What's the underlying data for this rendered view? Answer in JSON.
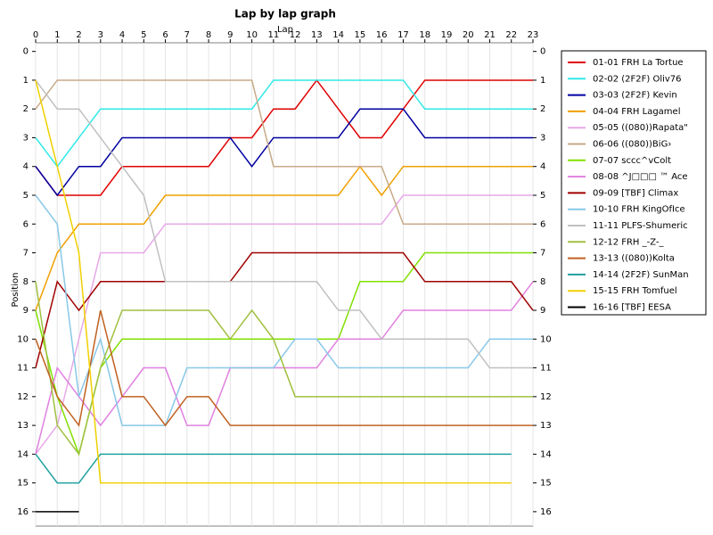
{
  "chart_data": {
    "type": "line",
    "title": "Lap by lap graph",
    "x_label": "Lap",
    "y_label": "Position",
    "x": [
      0,
      1,
      2,
      3,
      4,
      5,
      6,
      7,
      8,
      9,
      10,
      11,
      12,
      13,
      14,
      15,
      16,
      17,
      18,
      19,
      20,
      21,
      22,
      23
    ],
    "xlim": [
      0,
      23
    ],
    "xticks": [
      0,
      1,
      2,
      3,
      4,
      5,
      6,
      7,
      8,
      9,
      10,
      11,
      12,
      13,
      14,
      15,
      16,
      17,
      18,
      19,
      20,
      21,
      22,
      23
    ],
    "ylim": [
      -0.3,
      16.5
    ],
    "yticks": [
      0,
      1,
      2,
      3,
      4,
      5,
      6,
      7,
      8,
      9,
      10,
      11,
      12,
      13,
      14,
      15,
      16
    ],
    "y_inverted": true,
    "grid": true,
    "legend_position": "right",
    "series": [
      {
        "name": "01-01 FRH La Tortue",
        "color": "#e00000",
        "values": [
          4,
          5,
          5,
          5,
          4,
          4,
          4,
          4,
          4,
          3,
          3,
          2,
          2,
          1,
          2,
          3,
          3,
          2,
          1,
          1,
          1,
          1,
          1,
          1
        ]
      },
      {
        "name": "02-02 (2F2F) Oliv76",
        "color": "#30e8e8",
        "values": [
          3,
          4,
          3,
          2,
          2,
          2,
          2,
          2,
          2,
          2,
          2,
          1,
          1,
          1,
          1,
          1,
          1,
          1,
          2,
          2,
          2,
          2,
          2,
          2
        ]
      },
      {
        "name": "03-03 (2F2F) Kevin",
        "color": "#0000a0",
        "values": [
          4,
          5,
          4,
          4,
          3,
          3,
          3,
          3,
          3,
          3,
          4,
          3,
          3,
          3,
          3,
          2,
          2,
          2,
          3,
          3,
          3,
          3,
          3,
          3
        ]
      },
      {
        "name": "04-04 FRH Lagamel",
        "color": "#f0a000",
        "values": [
          9,
          7,
          6,
          6,
          6,
          6,
          5,
          5,
          5,
          5,
          5,
          5,
          5,
          5,
          5,
          4,
          5,
          4,
          4,
          4,
          4,
          4,
          4,
          4
        ]
      },
      {
        "name": "05-05 ((080))Rapata\"",
        "color": "#e8a8e8",
        "values": [
          14,
          13,
          10,
          7,
          7,
          7,
          6,
          6,
          6,
          6,
          6,
          6,
          6,
          6,
          6,
          6,
          6,
          5,
          5,
          5,
          5,
          5,
          5,
          5
        ]
      },
      {
        "name": "06-06 ((080))BiG›",
        "color": "#c8aa88",
        "values": [
          2,
          1,
          1,
          1,
          1,
          1,
          1,
          1,
          1,
          1,
          1,
          4,
          4,
          4,
          4,
          4,
          4,
          6,
          6,
          6,
          6,
          6,
          6,
          6
        ]
      },
      {
        "name": "07-07 sccc^vColt",
        "color": "#80e000",
        "values": [
          9,
          12,
          14,
          11,
          10,
          10,
          10,
          10,
          10,
          10,
          10,
          10,
          10,
          10,
          10,
          8,
          8,
          8,
          7,
          7,
          7,
          7,
          7,
          7
        ]
      },
      {
        "name": "08-08 ^J□□□ ™ Ace",
        "color": "#e080e0",
        "values": [
          14,
          11,
          12,
          13,
          12,
          11,
          11,
          13,
          13,
          11,
          11,
          11,
          11,
          11,
          10,
          10,
          10,
          9,
          9,
          9,
          9,
          9,
          9,
          8
        ]
      },
      {
        "name": "09-09 [TBF] Climax",
        "color": "#a00000",
        "values": [
          11,
          8,
          9,
          8,
          8,
          8,
          8,
          8,
          8,
          8,
          7,
          7,
          7,
          7,
          7,
          7,
          7,
          7,
          8,
          8,
          8,
          8,
          8,
          9
        ]
      },
      {
        "name": "10-10 FRH KingOfIce",
        "color": "#88c8e8",
        "values": [
          5,
          6,
          12,
          10,
          13,
          13,
          13,
          11,
          11,
          11,
          11,
          11,
          10,
          10,
          11,
          11,
          11,
          11,
          11,
          11,
          11,
          10,
          10,
          10
        ]
      },
      {
        "name": "11-11 PLFS-Shumeric",
        "color": "#c0c0c0",
        "values": [
          1,
          2,
          2,
          3,
          4,
          5,
          8,
          8,
          8,
          8,
          8,
          8,
          8,
          8,
          9,
          9,
          10,
          10,
          10,
          10,
          10,
          11,
          11,
          11
        ]
      },
      {
        "name": "12-12 FRH _-Z-_",
        "color": "#a0c040",
        "values": [
          8,
          13,
          14,
          11,
          9,
          9,
          9,
          9,
          9,
          10,
          9,
          10,
          12,
          12,
          12,
          12,
          12,
          12,
          12,
          12,
          12,
          12,
          12,
          12
        ]
      },
      {
        "name": "13-13 ((080))Kolta",
        "color": "#c06020",
        "values": [
          10,
          12,
          13,
          9,
          12,
          12,
          13,
          12,
          12,
          13,
          13,
          13,
          13,
          13,
          13,
          13,
          13,
          13,
          13,
          13,
          13,
          13,
          13,
          13
        ]
      },
      {
        "name": "14-14 (2F2F) SunMan",
        "color": "#20a0a0",
        "values": [
          14,
          15,
          15,
          14,
          14,
          14,
          14,
          14,
          14,
          14,
          14,
          14,
          14,
          14,
          14,
          14,
          14,
          14,
          14,
          14,
          14,
          14,
          14,
          null
        ]
      },
      {
        "name": "15-15 FRH Tomfuel",
        "color": "#f0d000",
        "values": [
          1,
          4,
          7,
          15,
          15,
          15,
          15,
          15,
          15,
          15,
          15,
          15,
          15,
          15,
          15,
          15,
          15,
          15,
          15,
          15,
          15,
          15,
          15,
          null
        ]
      },
      {
        "name": "16-16 [TBF] EESA",
        "color": "#000000",
        "values": [
          16,
          16,
          16,
          null,
          null,
          null,
          null,
          null,
          null,
          null,
          null,
          null,
          null,
          null,
          null,
          null,
          null,
          null,
          null,
          null,
          null,
          null,
          null,
          null
        ]
      }
    ]
  }
}
